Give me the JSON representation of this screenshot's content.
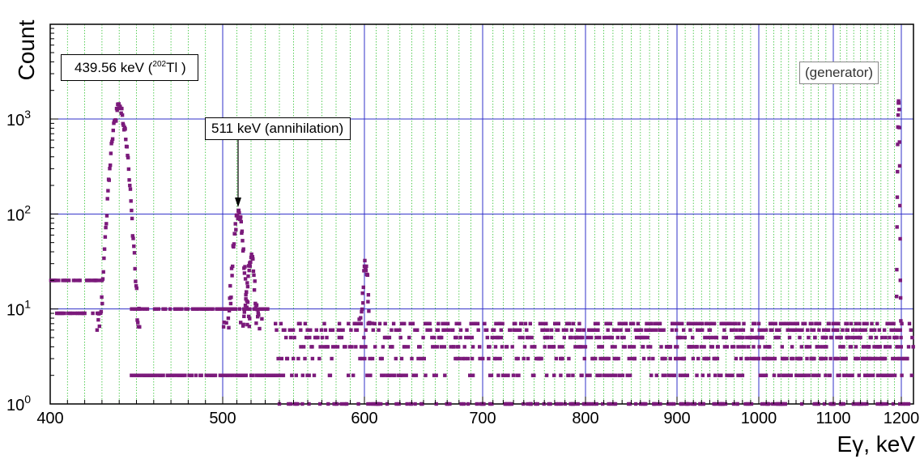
{
  "chart_data": {
    "type": "scatter",
    "title": "",
    "xlabel": "Eγ, keV",
    "ylabel": "Count",
    "xscale": "piecewise-log-like",
    "yscale": "log",
    "xlim": [
      400,
      1210
    ],
    "ylim": [
      1,
      10000
    ],
    "xticks": [
      400,
      500,
      600,
      700,
      800,
      900,
      1000,
      1100,
      1200
    ],
    "xtick_labels": [
      "400",
      "500",
      "600",
      "700",
      "800",
      "900",
      "1000",
      "1100",
      "1200"
    ],
    "ytick_labels": [
      {
        "base": "10",
        "exp": "0"
      },
      {
        "base": "10",
        "exp": "1"
      },
      {
        "base": "10",
        "exp": "2"
      },
      {
        "base": "10",
        "exp": "3"
      }
    ],
    "grid": true,
    "marker_color": "#7b1a7b",
    "major_grid_color": "#3030c8",
    "minor_grid_color": "#30c030",
    "annotations": {
      "peak1": {
        "text_pre": "439.56 keV (",
        "sup": "202",
        "text_post": "Tl )"
      },
      "peak2": {
        "text": "511 keV (annihilation)",
        "x": 511,
        "y": 90
      },
      "generator": {
        "text": "(generator)"
      }
    },
    "peaks": [
      {
        "center": 440,
        "height": 1300,
        "sigma": 3.2
      },
      {
        "center": 511,
        "height": 95,
        "sigma": 2.6
      },
      {
        "center": 520,
        "height": 30,
        "sigma": 2.0
      },
      {
        "center": 601,
        "height": 28,
        "sigma": 1.5
      },
      {
        "center": 1196,
        "height": 1500,
        "sigma": 0.9
      }
    ],
    "background_levels": [
      {
        "range": [
          400,
          430
        ],
        "values": [
          9,
          20
        ]
      },
      {
        "range": [
          447,
          537
        ],
        "values": [
          2,
          10
        ]
      },
      {
        "range": [
          537,
          1210
        ],
        "values": [
          1,
          2,
          3,
          4,
          5,
          6,
          7
        ]
      }
    ]
  }
}
